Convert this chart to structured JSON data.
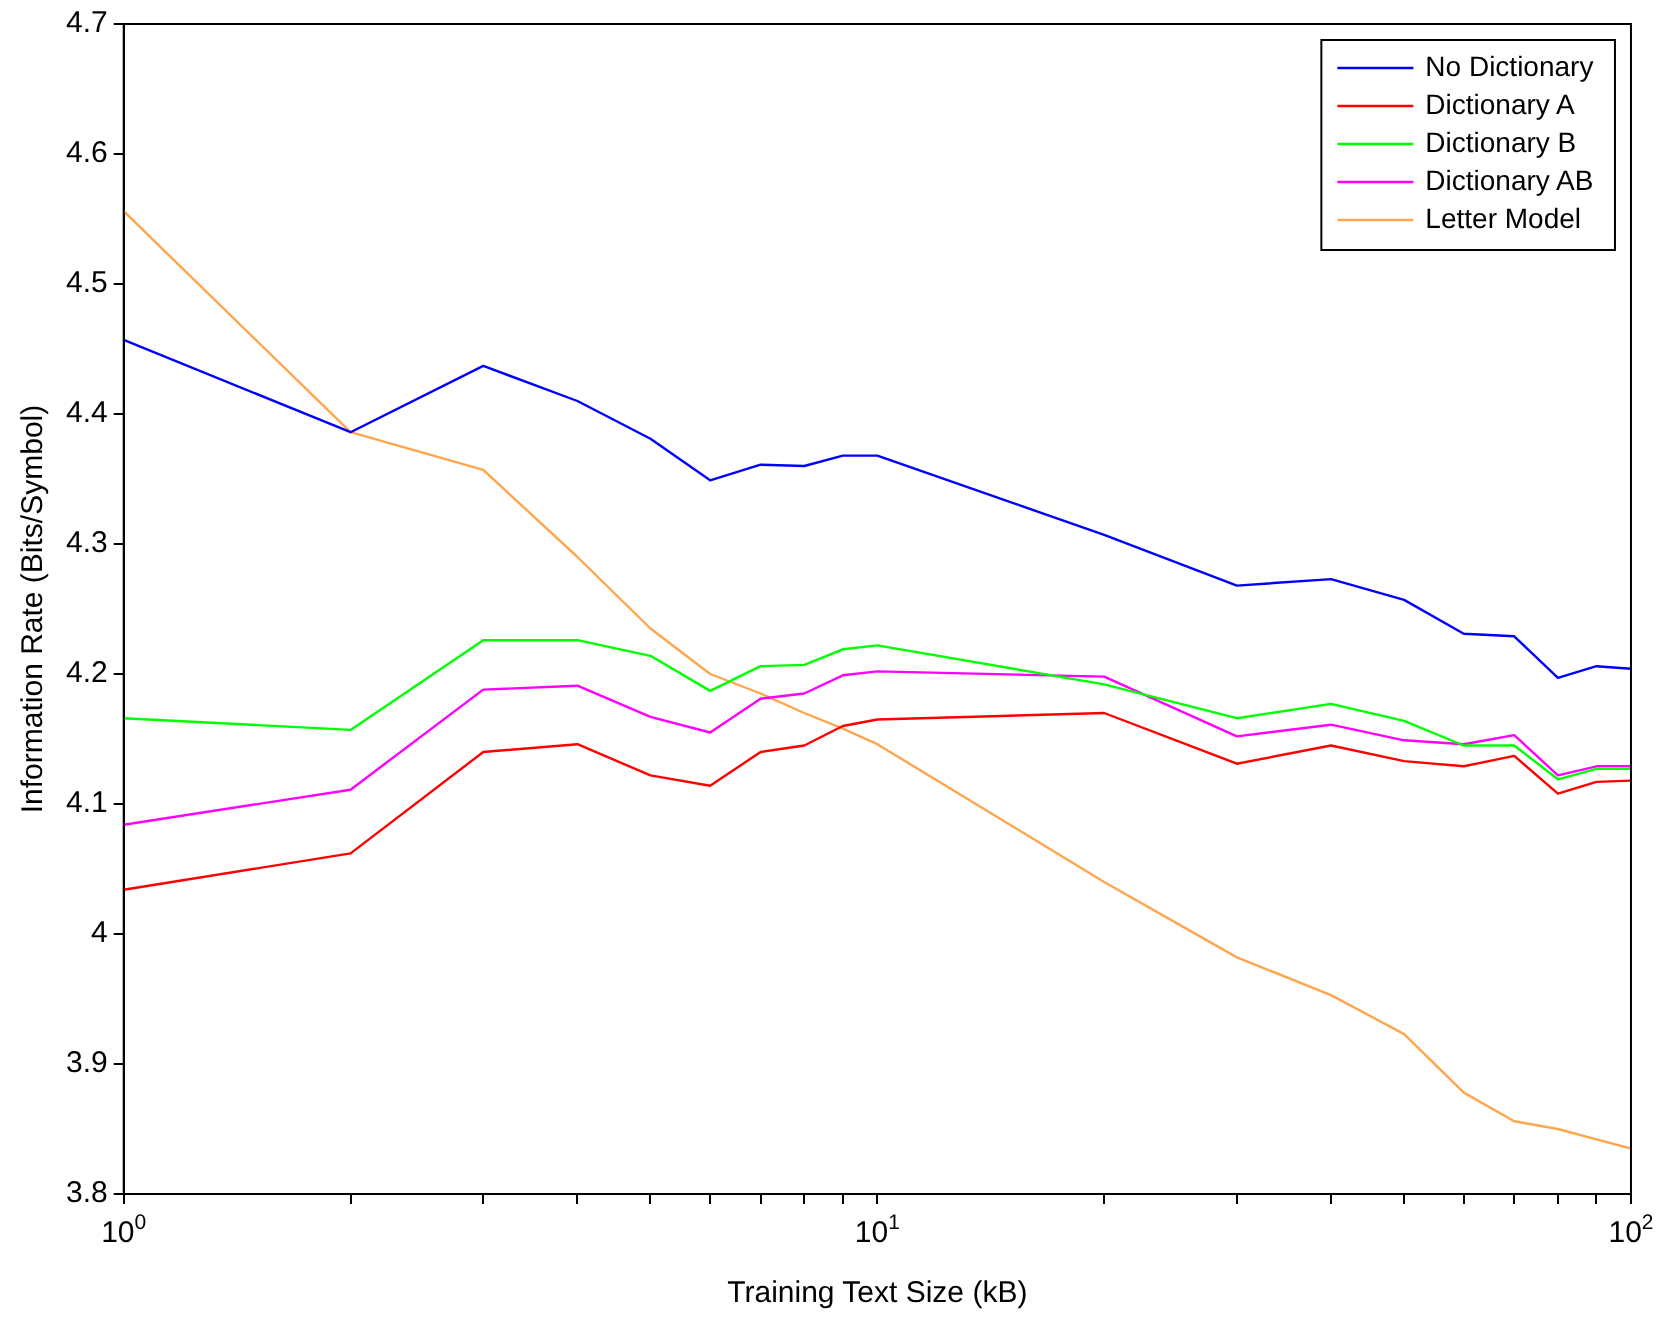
{
  "chart_data": {
    "type": "line",
    "xlabel": "Training Text Size (kB)",
    "ylabel": "Information Rate (Bits/Symbol)",
    "x": [
      1,
      2,
      3,
      4,
      5,
      6,
      7,
      8,
      9,
      10,
      20,
      30,
      40,
      50,
      60,
      70,
      80,
      90,
      100
    ],
    "series": [
      {
        "name": "No Dictionary",
        "color": "#0000ff",
        "values": [
          4.457,
          4.386,
          4.437,
          4.41,
          4.381,
          4.349,
          4.361,
          4.36,
          4.368,
          4.368,
          4.307,
          4.268,
          4.273,
          4.257,
          4.231,
          4.229,
          4.197,
          4.206,
          4.204
        ]
      },
      {
        "name": "Dictionary A",
        "color": "#ff0000",
        "values": [
          4.034,
          4.062,
          4.14,
          4.146,
          4.122,
          4.114,
          4.14,
          4.145,
          4.16,
          4.165,
          4.17,
          4.131,
          4.145,
          4.133,
          4.129,
          4.137,
          4.108,
          4.117,
          4.118
        ]
      },
      {
        "name": "Dictionary B",
        "color": "#00ff00",
        "values": [
          4.166,
          4.157,
          4.226,
          4.226,
          4.214,
          4.187,
          4.206,
          4.207,
          4.219,
          4.222,
          4.192,
          4.166,
          4.177,
          4.164,
          4.145,
          4.145,
          4.119,
          4.127,
          4.127
        ]
      },
      {
        "name": "Dictionary AB",
        "color": "#ff00ff",
        "values": [
          4.084,
          4.111,
          4.188,
          4.191,
          4.167,
          4.155,
          4.181,
          4.185,
          4.199,
          4.202,
          4.198,
          4.152,
          4.161,
          4.149,
          4.146,
          4.153,
          4.122,
          4.129,
          4.129
        ]
      },
      {
        "name": "Letter Model",
        "color": "#ffa64d",
        "values": [
          4.556,
          4.386,
          4.357,
          4.29,
          4.235,
          4.2,
          4.185,
          4.17,
          4.158,
          4.146,
          4.04,
          3.982,
          3.953,
          3.923,
          3.878,
          3.856,
          3.85,
          3.842,
          3.835
        ]
      }
    ],
    "log": "x",
    "xlim": [
      1,
      100
    ],
    "xticks": [
      {
        "value": 1,
        "label": "10$^{0}$"
      },
      {
        "value": 2,
        "label": null
      },
      {
        "value": 3,
        "label": null
      },
      {
        "value": 4,
        "label": null
      },
      {
        "value": 5,
        "label": null
      },
      {
        "value": 6,
        "label": null
      },
      {
        "value": 7,
        "label": null
      },
      {
        "value": 8,
        "label": null
      },
      {
        "value": 9,
        "label": null
      },
      {
        "value": 10,
        "label": "10$^{1}$"
      },
      {
        "value": 20,
        "label": null
      },
      {
        "value": 30,
        "label": null
      },
      {
        "value": 40,
        "label": null
      },
      {
        "value": 50,
        "label": null
      },
      {
        "value": 60,
        "label": null
      },
      {
        "value": 70,
        "label": null
      },
      {
        "value": 80,
        "label": null
      },
      {
        "value": 90,
        "label": null
      },
      {
        "value": 100,
        "label": "10$^{2}$"
      }
    ],
    "ylim": [
      3.8,
      4.7
    ],
    "yticks": [
      3.8,
      3.9,
      4,
      4.1,
      4.2,
      4.3,
      4.4,
      4.5,
      4.6,
      4.7
    ],
    "grid": false,
    "legend": "top right",
    "marker": "none",
    "line_style": "solid"
  }
}
